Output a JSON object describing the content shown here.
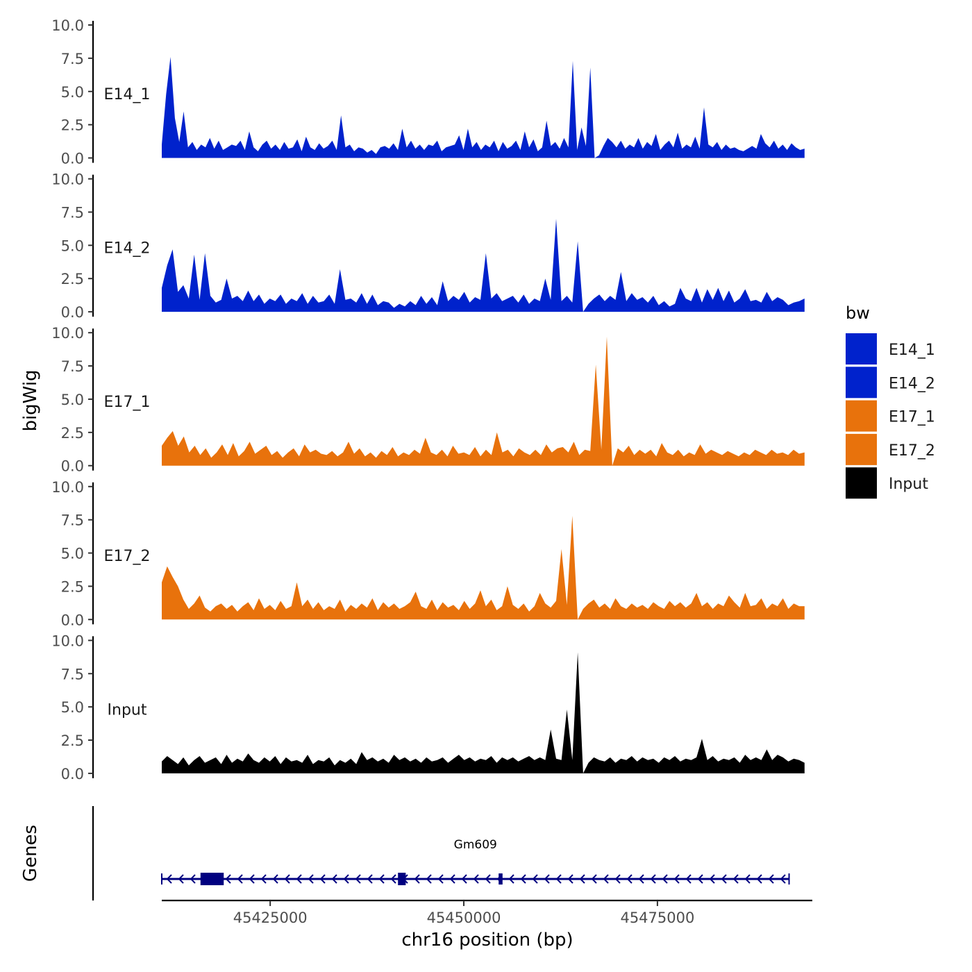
{
  "chart_data": {
    "type": "area",
    "y_axis_title": "bigWig",
    "genes_axis_title": "Genes",
    "x_axis_title": "chr16 position (bp)",
    "x_range": [
      45411000,
      45495000
    ],
    "x_ticks": [
      45425000,
      45450000,
      45475000
    ],
    "x_tick_labels": [
      "45425000",
      "45450000",
      "45475000"
    ],
    "y_range": [
      0,
      10
    ],
    "y_ticks": [
      0,
      2.5,
      5,
      7.5,
      10
    ],
    "y_tick_labels": [
      "0.0",
      "2.5",
      "5.0",
      "7.5",
      "10.0"
    ],
    "legend": {
      "title": "bw",
      "entries": [
        {
          "label": "E14_1",
          "color": "#0022CC"
        },
        {
          "label": "E14_2",
          "color": "#0022CC"
        },
        {
          "label": "E17_1",
          "color": "#E8720C"
        },
        {
          "label": "E17_2",
          "color": "#E8720C"
        },
        {
          "label": "Input",
          "color": "#000000"
        }
      ]
    },
    "series": [
      {
        "name": "E14_1",
        "color": "#0022CC",
        "values": [
          1.0,
          4.8,
          7.6,
          3.0,
          1.2,
          3.5,
          0.8,
          1.2,
          0.6,
          1.0,
          0.8,
          1.5,
          0.7,
          1.3,
          0.6,
          0.8,
          1.0,
          0.9,
          1.3,
          0.6,
          2.0,
          0.8,
          0.5,
          1.0,
          1.3,
          0.7,
          1.0,
          0.6,
          1.2,
          0.7,
          0.8,
          1.4,
          0.5,
          1.6,
          0.8,
          0.6,
          1.1,
          0.7,
          0.9,
          1.3,
          0.6,
          3.2,
          0.8,
          1.0,
          0.5,
          0.8,
          0.7,
          0.4,
          0.6,
          0.3,
          0.8,
          0.9,
          0.7,
          1.1,
          0.6,
          2.2,
          0.8,
          1.3,
          0.7,
          1.0,
          0.6,
          1.0,
          0.9,
          1.3,
          0.5,
          0.8,
          0.9,
          1.0,
          1.7,
          0.6,
          2.2,
          0.8,
          1.2,
          0.6,
          1.0,
          0.8,
          1.3,
          0.5,
          1.2,
          0.7,
          0.9,
          1.3,
          0.6,
          2.0,
          0.8,
          1.4,
          0.5,
          0.8,
          2.8,
          0.9,
          1.2,
          0.7,
          1.5,
          0.8,
          7.3,
          0.6,
          2.3,
          0.9,
          6.8,
          0.0,
          0.2,
          0.9,
          1.5,
          1.2,
          0.8,
          1.3,
          0.7,
          1.0,
          0.8,
          1.5,
          0.7,
          1.2,
          0.9,
          1.8,
          0.6,
          1.0,
          1.3,
          0.8,
          1.9,
          0.7,
          1.0,
          0.8,
          1.6,
          0.7,
          3.8,
          1.0,
          0.8,
          1.2,
          0.6,
          1.0,
          0.7,
          0.8,
          0.6,
          0.5,
          0.7,
          0.9,
          0.7,
          1.8,
          1.1,
          0.8,
          1.3,
          0.7,
          1.0,
          0.6,
          1.1,
          0.8,
          0.6,
          0.7
        ]
      },
      {
        "name": "E14_2",
        "color": "#0022CC",
        "values": [
          1.8,
          3.5,
          4.7,
          1.5,
          2.0,
          1.0,
          4.3,
          0.9,
          4.4,
          1.2,
          0.7,
          0.9,
          2.5,
          1.0,
          1.2,
          0.8,
          1.6,
          0.8,
          1.3,
          0.6,
          1.0,
          0.8,
          1.3,
          0.6,
          1.0,
          0.8,
          1.4,
          0.6,
          1.2,
          0.7,
          0.8,
          1.3,
          0.6,
          3.2,
          0.9,
          1.0,
          0.7,
          1.4,
          0.6,
          1.3,
          0.5,
          0.8,
          0.7,
          0.3,
          0.6,
          0.4,
          0.8,
          0.5,
          1.2,
          0.6,
          1.1,
          0.5,
          2.3,
          0.8,
          1.2,
          0.9,
          1.5,
          0.7,
          1.1,
          0.9,
          4.4,
          1.0,
          1.4,
          0.8,
          1.0,
          1.2,
          0.7,
          1.3,
          0.6,
          1.0,
          0.8,
          2.5,
          0.9,
          7.0,
          0.8,
          1.2,
          0.7,
          5.3,
          0.0,
          0.6,
          1.0,
          1.3,
          0.8,
          1.2,
          0.9,
          3.0,
          0.8,
          1.4,
          0.9,
          1.1,
          0.7,
          1.2,
          0.5,
          0.8,
          0.4,
          0.6,
          1.8,
          1.0,
          0.8,
          1.8,
          0.7,
          1.7,
          0.9,
          1.8,
          0.8,
          1.6,
          0.7,
          1.0,
          1.7,
          0.8,
          0.9,
          0.7,
          1.5,
          0.8,
          1.1,
          0.9,
          0.5,
          0.7,
          0.8,
          1.0
        ]
      },
      {
        "name": "E17_1",
        "color": "#E8720C",
        "values": [
          1.5,
          2.1,
          2.6,
          1.5,
          2.2,
          1.0,
          1.5,
          0.8,
          1.3,
          0.6,
          1.0,
          1.6,
          0.8,
          1.7,
          0.7,
          1.1,
          1.8,
          0.9,
          1.2,
          1.5,
          0.8,
          1.1,
          0.6,
          1.0,
          1.3,
          0.7,
          1.6,
          1.0,
          1.2,
          0.9,
          0.8,
          1.1,
          0.7,
          1.0,
          1.8,
          0.9,
          1.3,
          0.7,
          1.0,
          0.6,
          1.1,
          0.8,
          1.4,
          0.7,
          1.0,
          0.8,
          1.2,
          0.9,
          2.1,
          1.0,
          0.8,
          1.2,
          0.7,
          1.5,
          0.9,
          1.0,
          0.8,
          1.4,
          0.7,
          1.2,
          0.8,
          2.5,
          1.0,
          1.2,
          0.7,
          1.3,
          1.0,
          0.8,
          1.2,
          0.8,
          1.6,
          1.0,
          1.3,
          1.4,
          1.0,
          1.8,
          0.8,
          1.2,
          1.1,
          7.6,
          1.2,
          9.7,
          0.0,
          1.3,
          1.0,
          1.5,
          0.8,
          1.2,
          0.9,
          1.2,
          0.7,
          1.7,
          1.0,
          0.8,
          1.2,
          0.7,
          1.0,
          0.8,
          1.6,
          0.9,
          1.2,
          1.0,
          0.8,
          1.1,
          0.9,
          0.7,
          1.0,
          0.8,
          1.2,
          1.0,
          0.8,
          1.2,
          0.9,
          1.0,
          0.8,
          1.2,
          0.9,
          1.0
        ]
      },
      {
        "name": "E17_2",
        "color": "#E8720C",
        "values": [
          2.8,
          4.0,
          3.2,
          2.5,
          1.5,
          0.8,
          1.2,
          1.8,
          0.9,
          0.6,
          1.0,
          1.2,
          0.8,
          1.1,
          0.6,
          1.0,
          1.3,
          0.7,
          1.6,
          0.8,
          1.1,
          0.7,
          1.4,
          0.8,
          1.0,
          2.8,
          1.0,
          1.5,
          0.8,
          1.3,
          0.7,
          1.0,
          0.8,
          1.5,
          0.6,
          1.1,
          0.8,
          1.2,
          0.9,
          1.6,
          0.7,
          1.3,
          0.9,
          1.2,
          0.8,
          1.0,
          1.3,
          2.1,
          1.0,
          0.8,
          1.5,
          0.7,
          1.3,
          0.9,
          1.1,
          0.7,
          1.4,
          0.8,
          1.2,
          2.2,
          1.0,
          1.5,
          0.7,
          1.0,
          2.5,
          1.1,
          0.8,
          1.2,
          0.6,
          1.0,
          2.0,
          1.2,
          0.9,
          1.4,
          5.3,
          1.1,
          7.8,
          0.0,
          0.8,
          1.2,
          1.5,
          0.9,
          1.2,
          0.8,
          1.6,
          1.0,
          0.8,
          1.2,
          0.9,
          1.1,
          0.8,
          1.3,
          1.0,
          0.8,
          1.4,
          1.0,
          1.3,
          0.9,
          1.2,
          2.0,
          1.0,
          1.3,
          0.8,
          1.2,
          1.0,
          1.8,
          1.3,
          0.9,
          2.0,
          1.0,
          1.1,
          1.6,
          0.8,
          1.2,
          1.0,
          1.6,
          0.8,
          1.2,
          1.0,
          1.0
        ]
      },
      {
        "name": "Input",
        "color": "#000000",
        "values": [
          0.9,
          1.3,
          1.0,
          0.7,
          1.2,
          0.6,
          1.0,
          1.3,
          0.8,
          1.0,
          1.2,
          0.7,
          1.4,
          0.8,
          1.1,
          0.9,
          1.5,
          1.0,
          0.8,
          1.2,
          0.9,
          1.3,
          0.7,
          1.2,
          0.9,
          1.0,
          0.8,
          1.4,
          0.7,
          1.0,
          0.9,
          1.2,
          0.6,
          1.0,
          0.8,
          1.1,
          0.7,
          1.6,
          1.0,
          1.2,
          0.9,
          1.1,
          0.8,
          1.4,
          1.0,
          1.2,
          0.9,
          1.1,
          0.8,
          1.2,
          0.9,
          1.0,
          1.2,
          0.8,
          1.1,
          1.4,
          1.0,
          1.2,
          0.9,
          1.1,
          1.0,
          1.3,
          0.8,
          1.2,
          1.0,
          1.2,
          0.9,
          1.1,
          1.3,
          1.0,
          1.2,
          1.0,
          3.3,
          1.1,
          1.0,
          4.8,
          1.0,
          9.1,
          0.0,
          0.8,
          1.2,
          1.0,
          0.9,
          1.2,
          0.8,
          1.1,
          1.0,
          1.3,
          0.9,
          1.2,
          1.0,
          1.1,
          0.8,
          1.2,
          1.0,
          1.3,
          0.9,
          1.1,
          1.0,
          1.2,
          2.6,
          1.0,
          1.3,
          0.9,
          1.1,
          1.0,
          1.2,
          0.8,
          1.4,
          1.0,
          1.2,
          1.0,
          1.8,
          1.0,
          1.4,
          1.2,
          0.9,
          1.1,
          1.0,
          0.8
        ]
      }
    ],
    "genes": [
      {
        "name": "Gm609",
        "strand": "-",
        "start": 45411000,
        "end": 45492000,
        "exons": [
          [
            45416000,
            45419000
          ],
          [
            45441500,
            45442500
          ],
          [
            45454500,
            45455000
          ]
        ]
      }
    ]
  }
}
